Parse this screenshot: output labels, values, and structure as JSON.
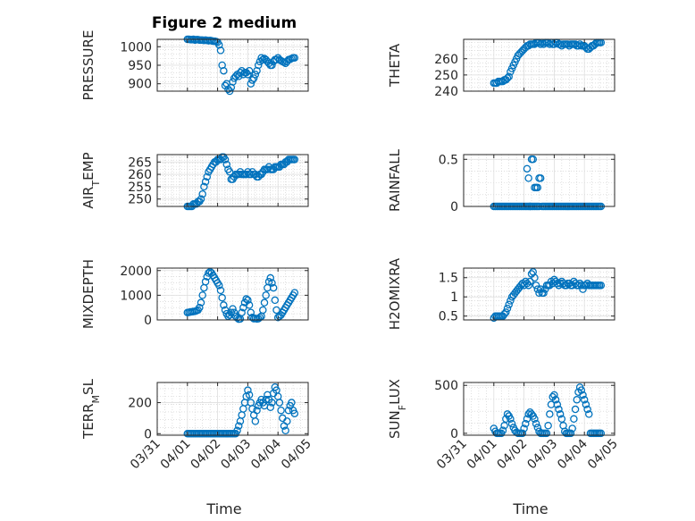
{
  "figure_title": "Figure 2 medium",
  "xlabel": "Time",
  "x_tick_labels": [
    "03/31",
    "04/01",
    "04/02",
    "04/03",
    "04/04",
    "04/05"
  ],
  "colors": {
    "marker": "#0072BD",
    "grid": "#cccccc",
    "axis": "#262626"
  },
  "chart_data": [
    {
      "type": "scatter",
      "ylabel": "PRESSURE",
      "ylim": [
        880,
        1020
      ],
      "yticks": [
        900,
        950,
        1000
      ],
      "grid": true,
      "x": [
        0.0,
        0.05,
        0.1,
        0.15,
        0.2,
        0.25,
        0.3,
        0.35,
        0.4,
        0.45,
        0.5,
        0.55,
        0.6,
        0.65,
        0.7,
        0.75,
        0.8,
        0.85,
        0.9,
        0.95,
        1.0,
        1.05,
        1.1,
        1.15,
        1.2,
        1.25,
        1.3,
        1.35,
        1.4,
        1.45,
        1.5,
        1.55,
        1.6,
        1.65,
        1.7,
        1.75,
        1.8,
        1.85,
        1.9,
        1.95,
        2.0,
        2.05,
        2.1,
        2.15,
        2.2,
        2.25,
        2.3,
        2.35,
        2.4,
        2.45,
        2.5,
        2.55,
        2.6,
        2.65,
        2.7,
        2.75,
        2.8,
        2.85,
        2.9,
        2.95,
        3.0,
        3.05,
        3.1,
        3.15,
        3.2,
        3.25,
        3.3,
        3.35,
        3.4,
        3.45,
        3.5,
        3.55
      ],
      "y": [
        1020,
        1020,
        1019,
        1019,
        1020,
        1018,
        1019,
        1019,
        1018,
        1018,
        1018,
        1017,
        1018,
        1017,
        1016,
        1017,
        1016,
        1015,
        1015,
        1014,
        1012,
        1005,
        990,
        950,
        935,
        895,
        900,
        885,
        880,
        890,
        905,
        915,
        920,
        925,
        920,
        930,
        935,
        925,
        930,
        930,
        925,
        935,
        900,
        910,
        915,
        925,
        935,
        950,
        960,
        970,
        965,
        968,
        965,
        960,
        955,
        950,
        950,
        960,
        965,
        965,
        970,
        965,
        962,
        960,
        958,
        955,
        960,
        965,
        966,
        968,
        970,
        970
      ]
    },
    {
      "type": "scatter",
      "ylabel": "THETA",
      "ylim": [
        240,
        272
      ],
      "yticks": [
        240,
        250,
        260
      ],
      "grid": true,
      "x": [
        0.0,
        0.05,
        0.1,
        0.15,
        0.2,
        0.25,
        0.3,
        0.35,
        0.4,
        0.45,
        0.5,
        0.55,
        0.6,
        0.65,
        0.7,
        0.75,
        0.8,
        0.85,
        0.9,
        0.95,
        1.0,
        1.05,
        1.1,
        1.15,
        1.2,
        1.25,
        1.3,
        1.35,
        1.4,
        1.45,
        1.5,
        1.55,
        1.6,
        1.65,
        1.7,
        1.75,
        1.8,
        1.85,
        1.9,
        1.95,
        2.0,
        2.05,
        2.1,
        2.15,
        2.2,
        2.25,
        2.3,
        2.35,
        2.4,
        2.45,
        2.5,
        2.55,
        2.6,
        2.65,
        2.7,
        2.75,
        2.8,
        2.85,
        2.9,
        2.95,
        3.0,
        3.05,
        3.1,
        3.15,
        3.2,
        3.25,
        3.3,
        3.35,
        3.4,
        3.45,
        3.5,
        3.55
      ],
      "y": [
        245,
        245,
        245,
        246,
        246,
        246,
        246,
        247,
        247,
        248,
        249,
        252,
        254,
        256,
        258,
        260,
        262,
        263,
        264,
        265,
        266,
        267,
        268,
        268,
        269,
        269,
        269,
        269,
        270,
        270,
        270,
        269,
        270,
        269,
        270,
        270,
        270,
        269,
        270,
        269,
        269,
        270,
        270,
        269,
        269,
        268,
        269,
        269,
        269,
        269,
        268,
        269,
        269,
        269,
        269,
        268,
        268,
        269,
        268,
        268,
        268,
        267,
        266,
        266,
        267,
        268,
        268,
        269,
        270,
        270,
        270,
        270
      ]
    },
    {
      "type": "scatter",
      "ylabel": "AIR_TEMP",
      "ylim": [
        247,
        268
      ],
      "yticks": [
        250,
        255,
        260,
        265
      ],
      "grid": true,
      "x": [
        0.0,
        0.05,
        0.1,
        0.15,
        0.2,
        0.25,
        0.3,
        0.35,
        0.4,
        0.45,
        0.5,
        0.55,
        0.6,
        0.65,
        0.7,
        0.75,
        0.8,
        0.85,
        0.9,
        0.95,
        1.0,
        1.05,
        1.1,
        1.15,
        1.2,
        1.25,
        1.3,
        1.35,
        1.4,
        1.45,
        1.5,
        1.55,
        1.6,
        1.65,
        1.7,
        1.75,
        1.8,
        1.85,
        1.9,
        1.95,
        2.0,
        2.05,
        2.1,
        2.15,
        2.2,
        2.25,
        2.3,
        2.35,
        2.4,
        2.45,
        2.5,
        2.55,
        2.6,
        2.65,
        2.7,
        2.75,
        2.8,
        2.85,
        2.9,
        2.95,
        3.0,
        3.05,
        3.1,
        3.15,
        3.2,
        3.25,
        3.3,
        3.35,
        3.4,
        3.45,
        3.5,
        3.55
      ],
      "y": [
        247,
        247,
        247,
        247,
        248,
        248,
        248,
        249,
        249,
        250,
        252,
        255,
        257,
        259,
        261,
        262,
        263,
        264,
        265,
        265,
        266,
        266,
        266,
        267,
        267,
        266,
        264,
        262,
        261,
        258,
        258,
        259,
        260,
        260,
        260,
        261,
        260,
        260,
        260,
        260,
        261,
        260,
        260,
        261,
        260,
        260,
        259,
        259,
        260,
        260,
        261,
        262,
        262,
        262,
        263,
        262,
        262,
        262,
        263,
        263,
        263,
        263,
        264,
        264,
        264,
        265,
        265,
        266,
        266,
        266,
        266,
        266
      ]
    },
    {
      "type": "scatter",
      "ylabel": "RAINFALL",
      "ylim": [
        0,
        0.55
      ],
      "yticks": [
        0,
        0.5
      ],
      "grid": true,
      "x": [
        0.0,
        0.05,
        0.1,
        0.15,
        0.2,
        0.25,
        0.3,
        0.35,
        0.4,
        0.45,
        0.5,
        0.55,
        0.6,
        0.65,
        0.7,
        0.75,
        0.8,
        0.85,
        0.9,
        0.95,
        1.0,
        1.05,
        1.1,
        1.15,
        1.2,
        1.25,
        1.3,
        1.35,
        1.4,
        1.45,
        1.5,
        1.55,
        1.6,
        1.65,
        1.7,
        1.75,
        1.8,
        1.85,
        1.9,
        1.95,
        2.0,
        2.05,
        2.1,
        2.15,
        2.2,
        2.25,
        2.3,
        2.35,
        2.4,
        2.45,
        2.5,
        2.55,
        2.6,
        2.65,
        2.7,
        2.75,
        2.8,
        2.85,
        2.9,
        2.95,
        3.0,
        3.05,
        3.1,
        3.15,
        3.2,
        3.25,
        3.3,
        3.35,
        3.4,
        3.45,
        3.5,
        3.55,
        1.1,
        1.15,
        1.2,
        1.25,
        1.3,
        1.35,
        1.4,
        1.45,
        1.5
      ],
      "y": [
        0,
        0,
        0,
        0,
        0,
        0,
        0,
        0,
        0,
        0,
        0,
        0,
        0,
        0,
        0,
        0,
        0,
        0,
        0,
        0,
        0,
        0,
        0.4,
        0.3,
        0,
        0.5,
        0.5,
        0.2,
        0.2,
        0.2,
        0.3,
        0.3,
        0,
        0,
        0,
        0,
        0,
        0,
        0,
        0,
        0,
        0,
        0,
        0,
        0,
        0,
        0,
        0,
        0,
        0,
        0,
        0,
        0,
        0,
        0,
        0,
        0,
        0,
        0,
        0,
        0,
        0,
        0,
        0,
        0,
        0,
        0,
        0,
        0,
        0,
        0,
        0,
        0,
        0,
        0,
        0,
        0,
        0,
        0,
        0,
        0
      ]
    },
    {
      "type": "scatter",
      "ylabel": "MIXDEPTH",
      "ylim": [
        0,
        2100
      ],
      "yticks": [
        0,
        1000,
        2000
      ],
      "grid": true,
      "x": [
        0.0,
        0.05,
        0.1,
        0.15,
        0.2,
        0.25,
        0.3,
        0.35,
        0.4,
        0.45,
        0.5,
        0.55,
        0.6,
        0.65,
        0.7,
        0.75,
        0.8,
        0.85,
        0.9,
        0.95,
        1.0,
        1.05,
        1.1,
        1.15,
        1.2,
        1.25,
        1.3,
        1.35,
        1.4,
        1.45,
        1.5,
        1.55,
        1.6,
        1.65,
        1.7,
        1.75,
        1.8,
        1.85,
        1.9,
        1.95,
        2.0,
        2.05,
        2.1,
        2.15,
        2.2,
        2.25,
        2.3,
        2.35,
        2.4,
        2.45,
        2.5,
        2.55,
        2.6,
        2.65,
        2.7,
        2.75,
        2.8,
        2.85,
        2.9,
        2.95,
        3.0,
        3.05,
        3.1,
        3.15,
        3.2,
        3.25,
        3.3,
        3.35,
        3.4,
        3.45,
        3.5,
        3.55
      ],
      "y": [
        300,
        310,
        320,
        330,
        340,
        350,
        370,
        400,
        500,
        700,
        1000,
        1300,
        1550,
        1750,
        1900,
        1950,
        1900,
        1800,
        1700,
        1600,
        1500,
        1400,
        1200,
        900,
        600,
        400,
        250,
        150,
        200,
        300,
        450,
        300,
        150,
        80,
        30,
        40,
        300,
        500,
        700,
        850,
        800,
        600,
        300,
        100,
        50,
        60,
        40,
        50,
        100,
        150,
        400,
        700,
        1000,
        1300,
        1550,
        1700,
        1500,
        1300,
        800,
        400,
        100,
        150,
        200,
        300,
        400,
        500,
        600,
        700,
        800,
        900,
        1000,
        1100
      ]
    },
    {
      "type": "scatter",
      "ylabel": "H2OMIXRA",
      "ylim": [
        0.4,
        1.75
      ],
      "yticks": [
        0.5,
        1,
        1.5
      ],
      "grid": true,
      "x": [
        0.0,
        0.05,
        0.1,
        0.15,
        0.2,
        0.25,
        0.3,
        0.35,
        0.4,
        0.45,
        0.5,
        0.55,
        0.6,
        0.65,
        0.7,
        0.75,
        0.8,
        0.85,
        0.9,
        0.95,
        1.0,
        1.05,
        1.1,
        1.15,
        1.2,
        1.25,
        1.3,
        1.35,
        1.4,
        1.45,
        1.5,
        1.55,
        1.6,
        1.65,
        1.7,
        1.75,
        1.8,
        1.85,
        1.9,
        1.95,
        2.0,
        2.05,
        2.1,
        2.15,
        2.2,
        2.25,
        2.3,
        2.35,
        2.4,
        2.45,
        2.5,
        2.55,
        2.6,
        2.65,
        2.7,
        2.75,
        2.8,
        2.85,
        2.9,
        2.95,
        3.0,
        3.05,
        3.1,
        3.15,
        3.2,
        3.25,
        3.3,
        3.35,
        3.4,
        3.45,
        3.5,
        3.55
      ],
      "y": [
        0.45,
        0.5,
        0.5,
        0.5,
        0.5,
        0.5,
        0.5,
        0.55,
        0.6,
        0.7,
        0.8,
        0.9,
        1.0,
        1.05,
        1.1,
        1.15,
        1.2,
        1.25,
        1.3,
        1.35,
        1.3,
        1.4,
        1.35,
        1.3,
        1.4,
        1.6,
        1.65,
        1.5,
        1.3,
        1.2,
        1.1,
        1.2,
        1.1,
        1.1,
        1.2,
        1.3,
        1.3,
        1.3,
        1.4,
        1.35,
        1.45,
        1.4,
        1.35,
        1.3,
        1.35,
        1.4,
        1.35,
        1.3,
        1.3,
        1.35,
        1.35,
        1.3,
        1.3,
        1.4,
        1.35,
        1.3,
        1.3,
        1.35,
        1.3,
        1.2,
        1.3,
        1.3,
        1.35,
        1.3,
        1.3,
        1.3,
        1.3,
        1.3,
        1.3,
        1.3,
        1.3,
        1.3
      ]
    },
    {
      "type": "scatter",
      "ylabel": "TERR_MSL",
      "ylim": [
        -10,
        330
      ],
      "yticks": [
        0,
        200
      ],
      "grid": true,
      "x": [
        0.0,
        0.05,
        0.1,
        0.15,
        0.2,
        0.25,
        0.3,
        0.35,
        0.4,
        0.45,
        0.5,
        0.55,
        0.6,
        0.65,
        0.7,
        0.75,
        0.8,
        0.85,
        0.9,
        0.95,
        1.0,
        1.05,
        1.1,
        1.15,
        1.2,
        1.25,
        1.3,
        1.35,
        1.4,
        1.45,
        1.5,
        1.55,
        1.6,
        1.65,
        1.7,
        1.75,
        1.8,
        1.85,
        1.9,
        1.95,
        2.0,
        2.05,
        2.1,
        2.15,
        2.2,
        2.25,
        2.3,
        2.35,
        2.4,
        2.45,
        2.5,
        2.55,
        2.6,
        2.65,
        2.7,
        2.75,
        2.8,
        2.85,
        2.9,
        2.95,
        3.0,
        3.05,
        3.1,
        3.15,
        3.2,
        3.25,
        3.3,
        3.35,
        3.4,
        3.45,
        3.5,
        3.55
      ],
      "y": [
        0,
        0,
        0,
        0,
        0,
        0,
        0,
        0,
        0,
        0,
        0,
        0,
        0,
        0,
        0,
        0,
        0,
        0,
        0,
        0,
        0,
        0,
        0,
        0,
        0,
        0,
        0,
        0,
        0,
        0,
        0,
        0,
        0,
        20,
        50,
        80,
        120,
        160,
        200,
        240,
        280,
        250,
        200,
        160,
        120,
        80,
        150,
        180,
        200,
        220,
        200,
        180,
        220,
        250,
        220,
        170,
        200,
        260,
        300,
        280,
        240,
        200,
        150,
        100,
        50,
        20,
        80,
        150,
        180,
        200,
        150,
        130
      ]
    },
    {
      "type": "scatter",
      "ylabel": "SUN_FLUX",
      "ylim": [
        -20,
        530
      ],
      "yticks": [
        0,
        500
      ],
      "grid": true,
      "x": [
        0.0,
        0.05,
        0.1,
        0.15,
        0.2,
        0.25,
        0.3,
        0.35,
        0.4,
        0.45,
        0.5,
        0.55,
        0.6,
        0.65,
        0.7,
        0.75,
        0.8,
        0.85,
        0.9,
        0.95,
        1.0,
        1.05,
        1.1,
        1.15,
        1.2,
        1.25,
        1.3,
        1.35,
        1.4,
        1.45,
        1.5,
        1.55,
        1.6,
        1.65,
        1.7,
        1.75,
        1.8,
        1.85,
        1.9,
        1.95,
        2.0,
        2.05,
        2.1,
        2.15,
        2.2,
        2.25,
        2.3,
        2.35,
        2.4,
        2.45,
        2.5,
        2.55,
        2.6,
        2.65,
        2.7,
        2.75,
        2.8,
        2.85,
        2.9,
        2.95,
        3.0,
        3.05,
        3.1,
        3.15,
        3.2,
        3.25,
        3.3,
        3.35,
        3.4,
        3.45,
        3.5,
        3.55
      ],
      "y": [
        50,
        20,
        0,
        0,
        0,
        0,
        30,
        80,
        150,
        200,
        180,
        150,
        100,
        60,
        30,
        10,
        0,
        0,
        0,
        0,
        50,
        100,
        150,
        200,
        220,
        200,
        180,
        150,
        100,
        60,
        20,
        0,
        0,
        0,
        0,
        0,
        80,
        200,
        300,
        380,
        400,
        350,
        300,
        250,
        200,
        150,
        80,
        20,
        0,
        0,
        0,
        0,
        50,
        150,
        250,
        350,
        430,
        480,
        450,
        400,
        350,
        300,
        250,
        200,
        0,
        0,
        0,
        0,
        0,
        0,
        0,
        0
      ]
    }
  ]
}
